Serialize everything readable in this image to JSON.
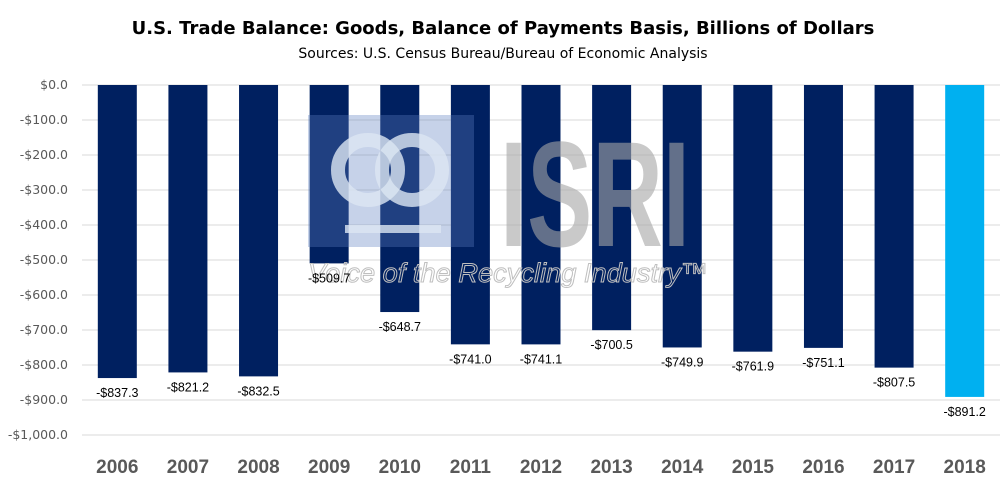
{
  "chart_data": {
    "type": "bar",
    "title": "U.S. Trade Balance: Goods, Balance of Payments Basis, Billions of Dollars",
    "subtitle": "Sources: U.S. Census Bureau/Bureau  of Economic Analysis",
    "categories": [
      "2006",
      "2007",
      "2008",
      "2009",
      "2010",
      "2011",
      "2012",
      "2013",
      "2014",
      "2015",
      "2016",
      "2017",
      "2018"
    ],
    "values": [
      -837.3,
      -821.2,
      -832.5,
      -509.7,
      -648.7,
      -741.0,
      -741.1,
      -700.5,
      -749.9,
      -761.9,
      -751.1,
      -807.5,
      -891.2
    ],
    "data_labels": [
      "-$837.3",
      "-$821.2",
      "-$832.5",
      "-$509.7",
      "-$648.7",
      "-$741.0",
      "-$741.1",
      "-$700.5",
      "-$749.9",
      "-$761.9",
      "-$751.1",
      "-$807.5",
      "-$891.2"
    ],
    "yticks": [
      0,
      -100,
      -200,
      -300,
      -400,
      -500,
      -600,
      -700,
      -800,
      -900,
      -1000
    ],
    "ytick_labels": [
      "$0.0",
      "-$100.0",
      "-$200.0",
      "-$300.0",
      "-$400.0",
      "-$500.0",
      "-$600.0",
      "-$700.0",
      "-$800.0",
      "-$900.0",
      "-$1,000.0"
    ],
    "ylim": [
      -1000,
      0
    ],
    "xlabel": "",
    "ylabel": "",
    "grid": true,
    "colors": {
      "default": "#002060",
      "highlight": "#00B0F0",
      "grid": "#D9D9D9"
    },
    "highlight_index": 12
  },
  "watermark": {
    "logo_text": "ISRI",
    "tagline": "Voice of the Recycling Industry™"
  }
}
